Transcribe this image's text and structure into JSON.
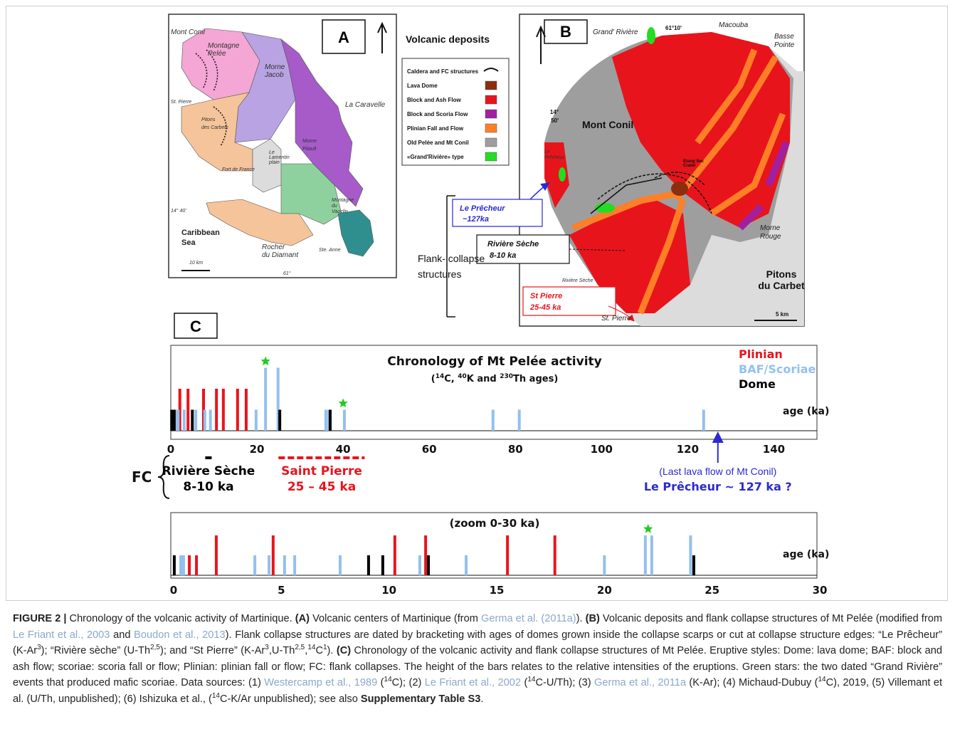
{
  "panel_a": {
    "letter": "A",
    "labels": [
      [
        "Mont Conil"
      ],
      [
        "Montagne",
        "Pelée"
      ],
      [
        "Morne",
        "Jacob"
      ],
      [
        "St. Pierre"
      ],
      [
        "Pitons",
        "des Carbets"
      ],
      [
        "La Caravelle"
      ],
      [
        "Morne",
        "Pitault"
      ],
      [
        "Le",
        "Lamentin",
        "plain"
      ],
      [
        "Fort de France"
      ],
      [
        "14° 40'"
      ],
      [
        "Caribbean",
        "Sea"
      ],
      [
        "10 km"
      ],
      [
        "Rocher",
        "du Diamant"
      ],
      [
        "Ste. Anne"
      ],
      [
        "Montagne",
        "du",
        "Vauclin"
      ],
      [
        "61°"
      ]
    ]
  },
  "legend": {
    "title": "Volcanic deposits",
    "items": [
      {
        "label": "Caldera and FC structures"
      },
      {
        "label": "Lava Dome",
        "color": "#8b2e0e"
      },
      {
        "label": "Block and Ash Flow",
        "color": "#e8141c"
      },
      {
        "label": "Block and Scoria Flow",
        "color": "#a020a0"
      },
      {
        "label": "Plinian Fall and Flow",
        "color": "#ff7f27"
      },
      {
        "label": "Old Pelée and Mt Conil",
        "color": "#9e9e9e"
      },
      {
        "label": "«Grand'Rivière» type",
        "color": "#22dd22"
      }
    ]
  },
  "panel_b": {
    "letter": "B",
    "labels": [
      [
        "Grand' Rivière"
      ],
      [
        "61°10'"
      ],
      [
        "Macouba"
      ],
      [
        "Basse",
        "Pointe"
      ],
      [
        "14°",
        "50'"
      ],
      [
        "Mont Conil"
      ],
      [
        "Le",
        "Prêcheur"
      ],
      [
        "Etang Sec",
        "Crater"
      ],
      [
        "Morne",
        "Rouge"
      ],
      [
        "Rivière Sèche"
      ],
      [
        "Pitons",
        "du Carbet"
      ],
      [
        "St. Pierre"
      ],
      [
        "5 km"
      ]
    ],
    "callouts": {
      "le_precheur": [
        "Le Prêcheur",
        "~127ka"
      ],
      "riviere_seche": [
        "Rivière Sèche",
        "8-10 ka"
      ],
      "st_pierre": [
        "St Pierre",
        "25-45 ka"
      ],
      "flank": [
        "Flank- collapse",
        "structures"
      ]
    }
  },
  "panel_c": {
    "letter": "C",
    "main": {
      "title": "Chronology of Mt Pelée activity",
      "subtitle": [
        {
          "text": "("
        },
        {
          "text": "14",
          "style": "sup"
        },
        {
          "text": "C, "
        },
        {
          "text": "40",
          "style": "sup"
        },
        {
          "text": "K and "
        },
        {
          "text": "230",
          "style": "sup"
        },
        {
          "text": "Th ages)"
        }
      ],
      "axis_label": "age (ka)",
      "xlim": [
        0,
        150
      ],
      "xticks": [
        0,
        20,
        40,
        60,
        80,
        100,
        120,
        140
      ],
      "series": [
        {
          "name": "Plinian",
          "color": "#e8141c",
          "ages": [
            2.1,
            4,
            7.6,
            10.6,
            12.2,
            15.5,
            17.5
          ],
          "sizes": [
            2,
            2,
            2,
            2,
            2,
            2,
            2
          ]
        },
        {
          "name": "BAF/Scoriae",
          "color": "#93c0ee",
          "ages": [
            1.2,
            1.7,
            3.1,
            5.8,
            7.9,
            9.2,
            19.8,
            22,
            24.9,
            36,
            36.7,
            40.3,
            74.8,
            80.9,
            123.7
          ],
          "sizes": [
            1,
            1,
            1,
            1,
            1,
            1,
            1,
            3,
            3,
            1,
            1,
            1,
            1,
            1,
            1
          ]
        },
        {
          "name": "Dome",
          "color": "#000000",
          "ages": [
            0.2,
            0.8,
            5,
            25.3,
            37
          ],
          "sizes": [
            1,
            1,
            1,
            1,
            1
          ]
        }
      ],
      "stars": [
        22,
        40
      ]
    },
    "fc": {
      "label": "FC",
      "riviere_seche": {
        "lines": [
          "Rivière Sèche",
          "8-10 ka"
        ],
        "range": [
          8,
          10
        ],
        "color": "#000000"
      },
      "saint_pierre": {
        "lines": [
          "Saint Pierre",
          "25 – 45 ka"
        ],
        "range": [
          25,
          45
        ],
        "color": "#e8141c"
      },
      "le_precheur": {
        "lines": [
          "(Last lava flow of Mt Conil)",
          "Le Prêcheur ~ 127 ka ?"
        ],
        "age": 127,
        "color": "#2a2ad0"
      }
    },
    "zoom": {
      "title": "(zoom 0-30 ka)",
      "axis_label": "age (ka)",
      "xlim": [
        0,
        30
      ],
      "xticks": [
        0,
        5,
        10,
        15,
        20,
        25,
        30
      ],
      "series": [
        {
          "color": "#e8141c",
          "ages": [
            0.73,
            1.06,
            1.98,
            4.62,
            10.27,
            11.7,
            15.5,
            17.7
          ],
          "sizes": [
            1,
            1,
            2,
            2,
            2,
            2,
            2,
            2
          ]
        },
        {
          "color": "#93c0ee",
          "ages": [
            0.33,
            0.46,
            3.77,
            4.43,
            5.15,
            5.62,
            7.73,
            11.43,
            13.58,
            20,
            21.9,
            22.2,
            24
          ],
          "sizes": [
            1,
            1,
            1,
            1,
            1,
            1,
            1,
            1,
            1,
            1,
            2,
            2,
            2
          ]
        },
        {
          "color": "#000000",
          "ages": [
            0.03,
            9.05,
            9.71,
            11.83,
            24.15
          ],
          "sizes": [
            1,
            1,
            1,
            1,
            1
          ]
        }
      ],
      "stars": [
        22.03
      ]
    }
  },
  "caption": {
    "runs": [
      {
        "text": "FIGURE 2 | ",
        "style": "bold"
      },
      {
        "text": "Chronology of the volcanic activity of Martinique. "
      },
      {
        "text": "(A)",
        "style": "bold"
      },
      {
        "text": " Volcanic centers of Martinique (from "
      },
      {
        "text": "Germa et al. (2011a)",
        "style": "link"
      },
      {
        "text": "). "
      },
      {
        "text": "(B)",
        "style": "bold"
      },
      {
        "text": " Volcanic deposits and flank collapse structures of Mt Pelée (modified from "
      },
      {
        "text": "Le Friant et al., 2003",
        "style": "link"
      },
      {
        "text": " and "
      },
      {
        "text": "Boudon et al., 2013",
        "style": "link"
      },
      {
        "text": "). Flank collapse structures are dated by bracketing with ages of domes grown inside the collapse scarps or cut at collapse structure edges: “Le Prêcheur” (K-Ar"
      },
      {
        "text": "3",
        "style": "sup"
      },
      {
        "text": "); “Rivière sèche” (U-Th"
      },
      {
        "text": "2,5",
        "style": "sup"
      },
      {
        "text": "); and “St Pierre” (K-Ar"
      },
      {
        "text": "3",
        "style": "sup"
      },
      {
        "text": ",U-Th"
      },
      {
        "text": "2,5",
        "style": "sup"
      },
      {
        "text": ","
      },
      {
        "text": "14",
        "style": "sup"
      },
      {
        "text": "C"
      },
      {
        "text": "1",
        "style": "sup"
      },
      {
        "text": "). "
      },
      {
        "text": "(C)",
        "style": "bold"
      },
      {
        "text": " Chronology of the volcanic activity and flank collapse structures of Mt Pelée. Eruptive styles: Dome: lava dome; BAF: block and ash flow; scoriae: scoria fall or flow; Plinian: plinian fall or flow; FC: flank collapses. The height of the bars relates to the relative intensities of the eruptions. Green stars: the two dated “Grand Rivière” events that produced mafic scoriae. Data sources: (1) "
      },
      {
        "text": "Westercamp et al., 1989",
        "style": "link"
      },
      {
        "text": " ("
      },
      {
        "text": "14",
        "style": "sup"
      },
      {
        "text": "C); (2) "
      },
      {
        "text": "Le Friant et al., 2002",
        "style": "link"
      },
      {
        "text": " ("
      },
      {
        "text": "14",
        "style": "sup"
      },
      {
        "text": "C-U/Th); (3) "
      },
      {
        "text": "Germa et al., 2011a",
        "style": "link"
      },
      {
        "text": " (K-Ar); (4) Michaud-Dubuy ("
      },
      {
        "text": "14",
        "style": "sup"
      },
      {
        "text": "C), 2019, (5) Villemant et al. (U/Th, unpublished); (6) Ishizuka et al., ("
      },
      {
        "text": "14",
        "style": "sup"
      },
      {
        "text": "C-K/Ar unpublished); see also "
      },
      {
        "text": "Supplementary Table S3",
        "style": "bold"
      },
      {
        "text": "."
      }
    ]
  }
}
